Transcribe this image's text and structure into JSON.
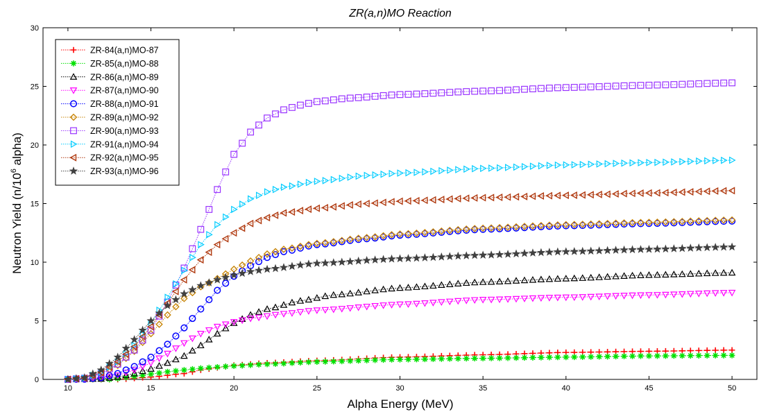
{
  "chart_data": {
    "type": "line",
    "title": "ZR(a,n)MO Reaction",
    "xlabel": "Alpha Energy (MeV)",
    "ylabel": {
      "prefix": "Neutron Yield (n/10",
      "sup": "6",
      "suffix": " alpha)"
    },
    "xlim": [
      8.5,
      51.5
    ],
    "ylim": [
      0,
      30
    ],
    "xticks": [
      10,
      15,
      20,
      25,
      30,
      35,
      40,
      45,
      50
    ],
    "yticks": [
      0,
      5,
      10,
      15,
      20,
      25,
      30
    ],
    "grid": false,
    "legend_position": "top-left",
    "x_start": 10,
    "x_end": 50,
    "x_step": 0.5,
    "series": [
      {
        "name": "ZR-84(a,n)MO-87",
        "color": "#ff0000",
        "marker": "plus",
        "points": [
          [
            10,
            0
          ],
          [
            13,
            0
          ],
          [
            15,
            0.2
          ],
          [
            17,
            0.5
          ],
          [
            18,
            0.8
          ],
          [
            19,
            1.0
          ],
          [
            20,
            1.2
          ],
          [
            22,
            1.4
          ],
          [
            25,
            1.6
          ],
          [
            30,
            1.9
          ],
          [
            35,
            2.1
          ],
          [
            40,
            2.3
          ],
          [
            45,
            2.4
          ],
          [
            50,
            2.5
          ]
        ]
      },
      {
        "name": "ZR-85(a,n)MO-88",
        "color": "#00e000",
        "marker": "asterisk",
        "points": [
          [
            10,
            0
          ],
          [
            12.5,
            0
          ],
          [
            14,
            0.25
          ],
          [
            15,
            0.45
          ],
          [
            16,
            0.65
          ],
          [
            17,
            0.8
          ],
          [
            18,
            0.95
          ],
          [
            19,
            1.05
          ],
          [
            20,
            1.15
          ],
          [
            22,
            1.3
          ],
          [
            25,
            1.5
          ],
          [
            30,
            1.7
          ],
          [
            35,
            1.8
          ],
          [
            40,
            1.9
          ],
          [
            45,
            2.0
          ],
          [
            50,
            2.05
          ]
        ]
      },
      {
        "name": "ZR-86(a,n)MO-89",
        "color": "#000000",
        "marker": "triangle-up",
        "points": [
          [
            10,
            0
          ],
          [
            12,
            0.05
          ],
          [
            13,
            0.2
          ],
          [
            14,
            0.5
          ],
          [
            15,
            0.9
          ],
          [
            16,
            1.4
          ],
          [
            17,
            2.0
          ],
          [
            18,
            2.9
          ],
          [
            19,
            3.9
          ],
          [
            20,
            4.8
          ],
          [
            21,
            5.5
          ],
          [
            22,
            6.0
          ],
          [
            24,
            6.7
          ],
          [
            26,
            7.2
          ],
          [
            30,
            7.8
          ],
          [
            35,
            8.3
          ],
          [
            40,
            8.6
          ],
          [
            45,
            8.9
          ],
          [
            50,
            9.1
          ]
        ]
      },
      {
        "name": "ZR-87(a,n)MO-90",
        "color": "#ff00ff",
        "marker": "triangle-down",
        "points": [
          [
            10,
            0
          ],
          [
            12,
            0.1
          ],
          [
            13,
            0.35
          ],
          [
            14,
            0.8
          ],
          [
            15,
            1.4
          ],
          [
            16,
            2.2
          ],
          [
            17,
            3.1
          ],
          [
            18,
            3.9
          ],
          [
            19,
            4.5
          ],
          [
            20,
            4.9
          ],
          [
            21,
            5.2
          ],
          [
            23,
            5.6
          ],
          [
            25,
            5.9
          ],
          [
            30,
            6.4
          ],
          [
            35,
            6.8
          ],
          [
            40,
            7.0
          ],
          [
            45,
            7.2
          ],
          [
            50,
            7.4
          ]
        ]
      },
      {
        "name": "ZR-88(a,n)MO-91",
        "color": "#0000ff",
        "marker": "circle",
        "points": [
          [
            10,
            0
          ],
          [
            11,
            0.02
          ],
          [
            12,
            0.15
          ],
          [
            13,
            0.5
          ],
          [
            14,
            1.1
          ],
          [
            15,
            1.9
          ],
          [
            16,
            3.0
          ],
          [
            17,
            4.4
          ],
          [
            18,
            6.0
          ],
          [
            19,
            7.6
          ],
          [
            20,
            8.8
          ],
          [
            21,
            9.7
          ],
          [
            22,
            10.4
          ],
          [
            23,
            10.9
          ],
          [
            25,
            11.5
          ],
          [
            28,
            12.0
          ],
          [
            30,
            12.3
          ],
          [
            35,
            12.8
          ],
          [
            40,
            13.1
          ],
          [
            45,
            13.3
          ],
          [
            50,
            13.5
          ]
        ]
      },
      {
        "name": "ZR-89(a,n)MO-92",
        "color": "#c8860a",
        "marker": "diamond",
        "points": [
          [
            10,
            0
          ],
          [
            11,
            0.1
          ],
          [
            12,
            0.5
          ],
          [
            13,
            1.2
          ],
          [
            14,
            2.4
          ],
          [
            15,
            3.9
          ],
          [
            16,
            5.5
          ],
          [
            17,
            6.9
          ],
          [
            18,
            7.9
          ],
          [
            19,
            8.6
          ],
          [
            20,
            9.4
          ],
          [
            21,
            10.1
          ],
          [
            22,
            10.7
          ],
          [
            23,
            11.1
          ],
          [
            25,
            11.6
          ],
          [
            28,
            12.1
          ],
          [
            30,
            12.4
          ],
          [
            35,
            12.9
          ],
          [
            40,
            13.2
          ],
          [
            45,
            13.4
          ],
          [
            50,
            13.6
          ]
        ]
      },
      {
        "name": "ZR-90(a,n)MO-93",
        "color": "#9933ff",
        "marker": "square",
        "points": [
          [
            10,
            0
          ],
          [
            11,
            0.1
          ],
          [
            12,
            0.5
          ],
          [
            13,
            1.3
          ],
          [
            14,
            2.5
          ],
          [
            15,
            4.2
          ],
          [
            16,
            6.6
          ],
          [
            17,
            9.5
          ],
          [
            18,
            12.8
          ],
          [
            19,
            16.2
          ],
          [
            20,
            19.2
          ],
          [
            21,
            21.1
          ],
          [
            22,
            22.3
          ],
          [
            23,
            23.0
          ],
          [
            24,
            23.4
          ],
          [
            25,
            23.7
          ],
          [
            27,
            24.0
          ],
          [
            30,
            24.3
          ],
          [
            35,
            24.6
          ],
          [
            40,
            24.9
          ],
          [
            45,
            25.1
          ],
          [
            50,
            25.3
          ]
        ]
      },
      {
        "name": "ZR-91(a,n)MO-94",
        "color": "#00ccff",
        "marker": "triangle-right",
        "points": [
          [
            10,
            0
          ],
          [
            11,
            0.1
          ],
          [
            12,
            0.6
          ],
          [
            13,
            1.5
          ],
          [
            14,
            2.9
          ],
          [
            15,
            4.8
          ],
          [
            16,
            7.0
          ],
          [
            17,
            9.3
          ],
          [
            18,
            11.5
          ],
          [
            19,
            13.2
          ],
          [
            20,
            14.5
          ],
          [
            21,
            15.4
          ],
          [
            22,
            16.0
          ],
          [
            23,
            16.4
          ],
          [
            25,
            16.9
          ],
          [
            28,
            17.4
          ],
          [
            30,
            17.6
          ],
          [
            35,
            18.0
          ],
          [
            40,
            18.3
          ],
          [
            45,
            18.5
          ],
          [
            50,
            18.7
          ]
        ]
      },
      {
        "name": "ZR-92(a,n)MO-95",
        "color": "#b03a10",
        "marker": "triangle-left",
        "points": [
          [
            10,
            0
          ],
          [
            11,
            0.1
          ],
          [
            12,
            0.6
          ],
          [
            13,
            1.5
          ],
          [
            14,
            2.8
          ],
          [
            15,
            4.5
          ],
          [
            16,
            6.5
          ],
          [
            17,
            8.5
          ],
          [
            18,
            10.2
          ],
          [
            19,
            11.5
          ],
          [
            20,
            12.5
          ],
          [
            21,
            13.3
          ],
          [
            22,
            13.8
          ],
          [
            23,
            14.2
          ],
          [
            25,
            14.6
          ],
          [
            28,
            15.0
          ],
          [
            30,
            15.2
          ],
          [
            35,
            15.5
          ],
          [
            40,
            15.7
          ],
          [
            45,
            15.9
          ],
          [
            50,
            16.1
          ]
        ]
      },
      {
        "name": "ZR-93(a,n)MO-96",
        "color": "#404040",
        "marker": "star",
        "points": [
          [
            10,
            0
          ],
          [
            11,
            0.15
          ],
          [
            12,
            0.8
          ],
          [
            13,
            1.9
          ],
          [
            14,
            3.4
          ],
          [
            15,
            5.0
          ],
          [
            16,
            6.3
          ],
          [
            17,
            7.3
          ],
          [
            18,
            8.0
          ],
          [
            19,
            8.5
          ],
          [
            20,
            8.9
          ],
          [
            21,
            9.2
          ],
          [
            22,
            9.4
          ],
          [
            25,
            9.9
          ],
          [
            30,
            10.3
          ],
          [
            35,
            10.6
          ],
          [
            40,
            10.9
          ],
          [
            45,
            11.1
          ],
          [
            50,
            11.3
          ]
        ]
      }
    ]
  }
}
